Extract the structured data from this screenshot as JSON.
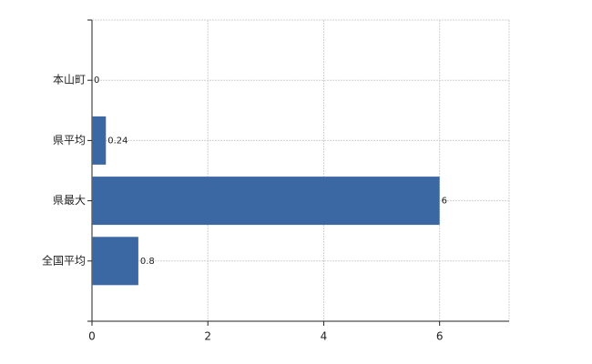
{
  "chart_data": {
    "type": "bar",
    "orientation": "horizontal",
    "categories": [
      "本山町",
      "県平均",
      "県最大",
      "全国平均"
    ],
    "values": [
      0,
      0.24,
      6,
      0.8
    ],
    "color": "#3b67a3",
    "xlim": [
      0,
      7.2
    ],
    "xticks": [
      0,
      2,
      4,
      6
    ],
    "grid": true
  }
}
